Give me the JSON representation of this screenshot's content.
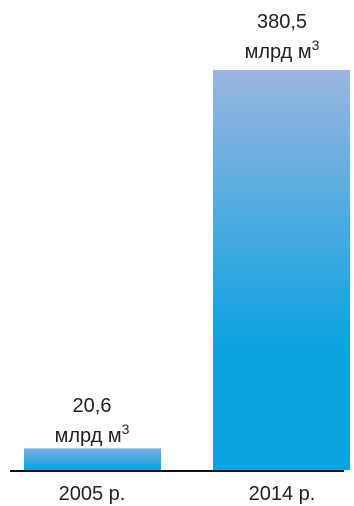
{
  "chart_data": {
    "type": "bar",
    "categories": [
      "2005 р.",
      "2014 р."
    ],
    "values": [
      20.6,
      380.5
    ],
    "value_labels": [
      {
        "number": "20,6",
        "unit": "млрд м",
        "sup": "3"
      },
      {
        "number": "380,5",
        "unit": "млрд м",
        "sup": "3"
      }
    ],
    "title": "",
    "xlabel": "",
    "ylabel": "",
    "ylim": [
      0,
      380.5
    ],
    "grid": false,
    "legend": "none"
  },
  "colors": {
    "bar_top": "#9ab6e0",
    "bar_bottom": "#0aa2e0",
    "axis": "#111111",
    "text": "#222222"
  }
}
